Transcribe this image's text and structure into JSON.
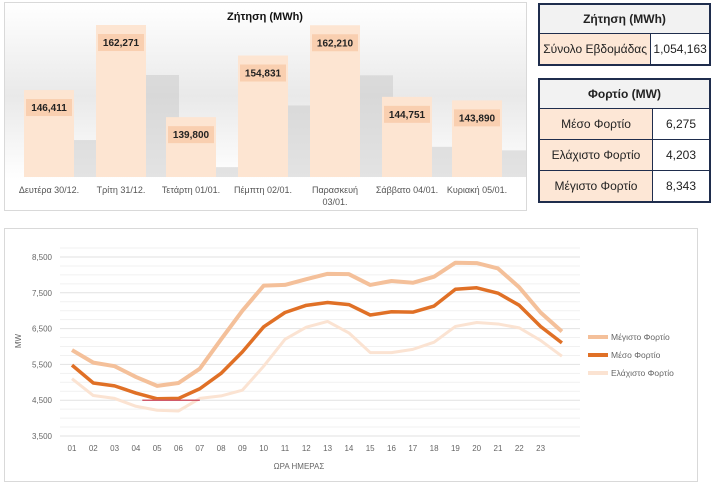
{
  "demand_chart": {
    "chart_data": {
      "type": "bar",
      "title": "Ζήτηση (MWh)",
      "categories": [
        "Δευτέρα 30/12.",
        "Τρίτη 31/12.",
        "Τετάρτη 01/01.",
        "Πέμπτη 02/01.",
        "Παρασκευή 03/01.",
        "Σάββατο 04/01.",
        "Κυριακή 05/01."
      ],
      "values": [
        146411,
        162271,
        139800,
        154831,
        162210,
        144751,
        143890
      ],
      "value_labels": [
        "146,411",
        "162,271",
        "139,800",
        "154,831",
        "162,210",
        "144,751",
        "143,890"
      ],
      "bar_color": "#fde5d2",
      "label_bg": "#f9cfb0"
    }
  },
  "demand_table": {
    "header": "Ζήτηση (MWh)",
    "rows": [
      {
        "label": "Σύνολο Εβδομάδας",
        "value": "1,054,163"
      }
    ]
  },
  "load_table": {
    "header": "Φορτίο (MW)",
    "rows": [
      {
        "label": "Μέσο Φορτίο",
        "value": "6,275"
      },
      {
        "label": "Ελάχιστο Φορτίο",
        "value": "4,203"
      },
      {
        "label": "Μέγιστο Φορτίο",
        "value": "8,343"
      }
    ]
  },
  "load_chart": {
    "chart_data": {
      "type": "line",
      "xlabel": "ΩΡΑ ΗΜΕΡΑΣ",
      "ylabel": "MW",
      "ylim": [
        3500,
        8500
      ],
      "yticks": [
        "3,500",
        "4,500",
        "5,500",
        "6,500",
        "7,500",
        "8,500"
      ],
      "x_tick_labels": [
        "01",
        "02",
        "03",
        "04",
        "05",
        "06",
        "07",
        "08",
        "09",
        "10",
        "11",
        "12",
        "13",
        "14",
        "15",
        "16",
        "17",
        "18",
        "19",
        "20",
        "21",
        "22",
        "23"
      ],
      "grid": true,
      "legend": "right",
      "series": [
        {
          "name": "Μέγιστο Φορτίο",
          "color": "#f4c09a",
          "values": [
            5900,
            5550,
            5450,
            5150,
            4900,
            4980,
            5380,
            6200,
            7000,
            7700,
            7720,
            7880,
            8030,
            8020,
            7720,
            7830,
            7780,
            7950,
            8340,
            8330,
            8180,
            7650,
            6950,
            6420
          ]
        },
        {
          "name": "Μέσο Φορτίο",
          "color": "#e07026",
          "values": [
            5480,
            4980,
            4900,
            4700,
            4540,
            4550,
            4820,
            5250,
            5850,
            6550,
            6950,
            7150,
            7230,
            7170,
            6880,
            6970,
            6960,
            7130,
            7600,
            7640,
            7490,
            7150,
            6560,
            6100
          ]
        },
        {
          "name": "Ελάχιστο Φορτίο",
          "color": "#fbe3d2",
          "values": [
            5100,
            4630,
            4550,
            4330,
            4220,
            4200,
            4550,
            4620,
            4780,
            5450,
            6200,
            6540,
            6700,
            6380,
            5830,
            5830,
            5920,
            6120,
            6560,
            6670,
            6630,
            6520,
            6170,
            5730
          ]
        }
      ],
      "annotation_line": {
        "y": 4500,
        "x_from": 4.3,
        "x_to": 7,
        "color": "#d05a6a"
      }
    }
  }
}
